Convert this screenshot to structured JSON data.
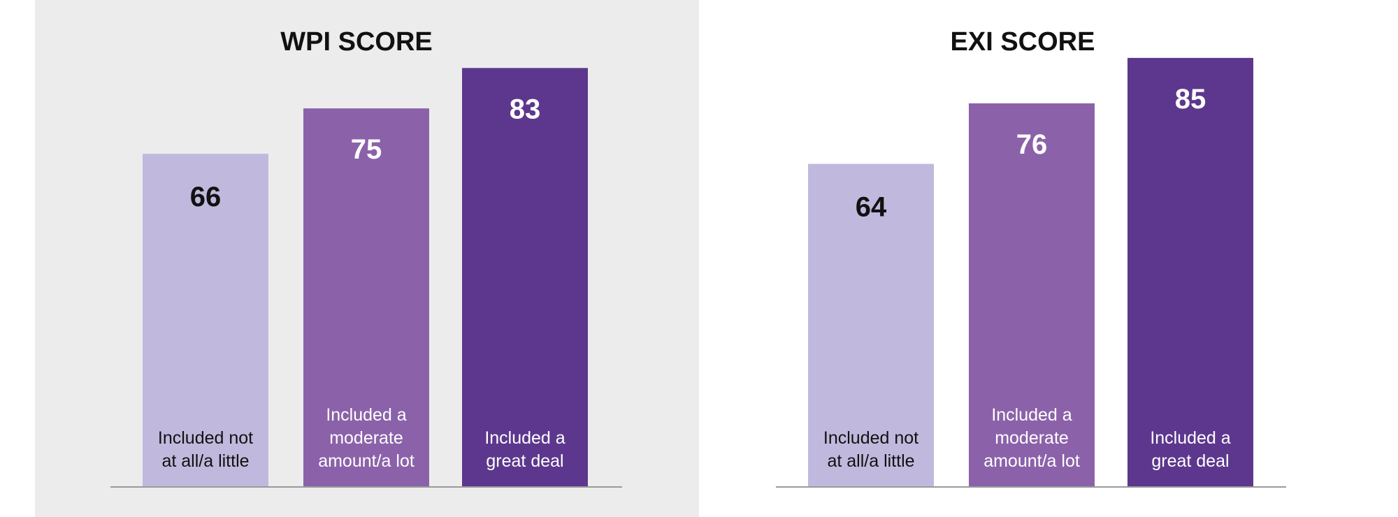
{
  "chart_data": [
    {
      "type": "bar",
      "title": "WPI SCORE",
      "categories": [
        "Included not at all/a little",
        "Included a moderate amount/a lot",
        "Included a great deal"
      ],
      "category_lines": [
        [
          "Included not",
          "at all/a little"
        ],
        [
          "Included a",
          "moderate",
          "amount/a lot"
        ],
        [
          "Included a",
          "great deal"
        ]
      ],
      "values": [
        66,
        75,
        83
      ],
      "value_labels": [
        "66",
        "75",
        "83"
      ],
      "ylim": [
        0,
        100
      ],
      "bar_colors": [
        "#c0b9dd",
        "#8b62a9",
        "#5d378d"
      ],
      "value_label_colors": [
        "#111111",
        "#ffffff",
        "#ffffff"
      ],
      "cat_label_colors": [
        "#111111",
        "#ffffff",
        "#ffffff"
      ],
      "background": "#ececed",
      "grid": false,
      "legend": "none"
    },
    {
      "type": "bar",
      "title": "EXI SCORE",
      "categories": [
        "Included not at all/a little",
        "Included a moderate amount/a lot",
        "Included a great deal"
      ],
      "category_lines": [
        [
          "Included not",
          "at all/a little"
        ],
        [
          "Included a",
          "moderate",
          "amount/a lot"
        ],
        [
          "Included a",
          "great deal"
        ]
      ],
      "values": [
        64,
        76,
        85
      ],
      "value_labels": [
        "64",
        "76",
        "85"
      ],
      "ylim": [
        0,
        100
      ],
      "bar_colors": [
        "#c0b9dd",
        "#8b62a9",
        "#5d378d"
      ],
      "value_label_colors": [
        "#111111",
        "#ffffff",
        "#ffffff"
      ],
      "cat_label_colors": [
        "#111111",
        "#ffffff",
        "#ffffff"
      ],
      "background": "#ffffff",
      "grid": false,
      "legend": "none"
    }
  ]
}
